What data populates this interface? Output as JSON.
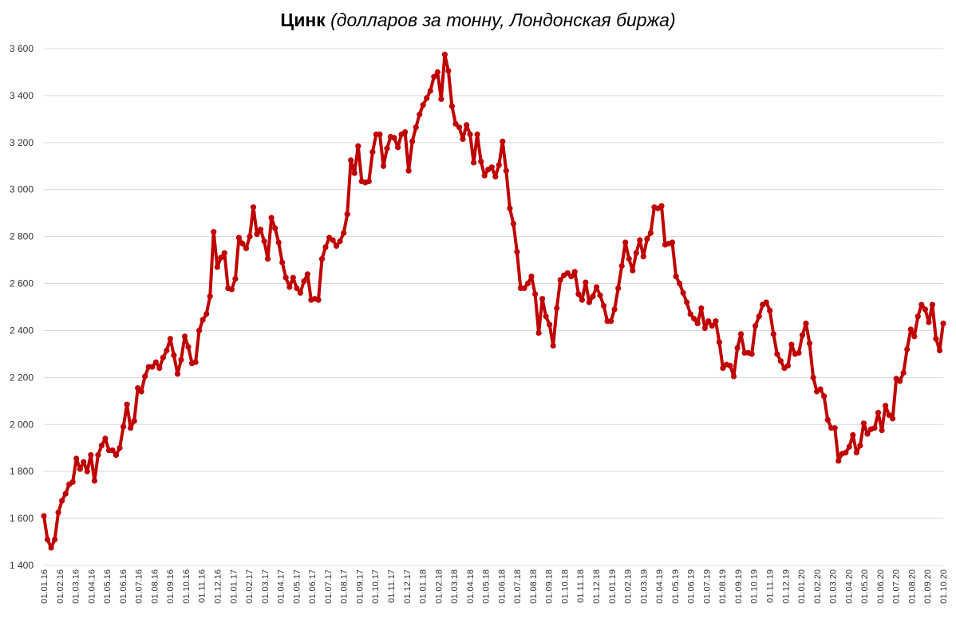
{
  "title": "Цинк",
  "subtitle": "(долларов за тонну, Лондонская биржа)",
  "colors": {
    "line": "#c00000",
    "grid": "#d9d9d9",
    "text": "#333333"
  },
  "chart_data": {
    "type": "line",
    "title": "Цинк (долларов за тонну, Лондонская биржа)",
    "xlabel": "",
    "ylabel": "",
    "ylim": [
      1400,
      3600
    ],
    "yticks": [
      1400,
      1600,
      1800,
      2000,
      2200,
      2400,
      2600,
      2800,
      3000,
      3200,
      3400,
      3600
    ],
    "ytick_labels": [
      "1 400",
      "1 600",
      "1 800",
      "2 000",
      "2 200",
      "2 400",
      "2 600",
      "2 800",
      "3 000",
      "3 200",
      "3 400",
      "3 600"
    ],
    "xtick_labels": [
      "01.01.16",
      "01.02.16",
      "01.03.16",
      "01.04.16",
      "01.05.16",
      "01.06.16",
      "01.07.16",
      "01.08.16",
      "01.09.16",
      "01.10.16",
      "01.11.16",
      "01.12.16",
      "01.01.17",
      "01.02.17",
      "01.03.17",
      "01.04.17",
      "01.05.17",
      "01.06.17",
      "01.07.17",
      "01.08.17",
      "01.09.17",
      "01.10.17",
      "01.11.17",
      "01.12.17",
      "01.01.18",
      "01.02.18",
      "01.03.18",
      "01.04.18",
      "01.05.18",
      "01.06.18",
      "01.07.18",
      "01.08.18",
      "01.09.18",
      "01.10.18",
      "01.11.18",
      "01.12.18",
      "01.01.19",
      "01.02.19",
      "01.03.19",
      "01.04.19",
      "01.05.19",
      "01.06.19",
      "01.07.19",
      "01.08.19",
      "01.09.19",
      "01.10.19",
      "01.11.19",
      "01.12.19",
      "01.01.20",
      "01.02.20",
      "01.03.20",
      "01.04.20",
      "01.05.20",
      "01.06.20",
      "01.07.20",
      "01.08.20",
      "01.09.20",
      "01.10.20"
    ],
    "grid": true,
    "legend": "none",
    "series": [
      {
        "values": [
          1610,
          1510,
          1475,
          1510,
          1625,
          1675,
          1705,
          1745,
          1755,
          1855,
          1810,
          1840,
          1800,
          1870,
          1760,
          1870,
          1910,
          1940,
          1890,
          1890,
          1870,
          1900,
          1990,
          2085,
          1985,
          2015,
          2155,
          2140,
          2205,
          2245,
          2245,
          2265,
          2240,
          2285,
          2315,
          2365,
          2295,
          2215,
          2275,
          2375,
          2330,
          2260,
          2265,
          2400,
          2445,
          2470,
          2545,
          2820,
          2670,
          2710,
          2730,
          2580,
          2575,
          2620,
          2795,
          2770,
          2750,
          2800,
          2925,
          2810,
          2830,
          2780,
          2705,
          2880,
          2835,
          2775,
          2690,
          2625,
          2585,
          2625,
          2580,
          2560,
          2610,
          2640,
          2530,
          2535,
          2530,
          2705,
          2755,
          2795,
          2785,
          2760,
          2780,
          2815,
          2895,
          3125,
          3070,
          3185,
          3035,
          3030,
          3035,
          3160,
          3235,
          3235,
          3100,
          3175,
          3225,
          3220,
          3180,
          3235,
          3245,
          3080,
          3205,
          3265,
          3320,
          3360,
          3390,
          3420,
          3480,
          3500,
          3385,
          3575,
          3505,
          3355,
          3280,
          3265,
          3215,
          3275,
          3235,
          3115,
          3235,
          3120,
          3060,
          3085,
          3095,
          3055,
          3105,
          3205,
          3080,
          2920,
          2855,
          2735,
          2580,
          2580,
          2600,
          2630,
          2555,
          2390,
          2535,
          2460,
          2425,
          2335,
          2495,
          2615,
          2635,
          2645,
          2630,
          2650,
          2555,
          2530,
          2605,
          2520,
          2545,
          2585,
          2550,
          2505,
          2440,
          2440,
          2490,
          2580,
          2675,
          2775,
          2705,
          2655,
          2730,
          2785,
          2715,
          2790,
          2815,
          2925,
          2920,
          2930,
          2765,
          2770,
          2775,
          2630,
          2600,
          2560,
          2520,
          2470,
          2450,
          2430,
          2495,
          2410,
          2440,
          2420,
          2440,
          2350,
          2240,
          2255,
          2250,
          2205,
          2325,
          2385,
          2305,
          2305,
          2300,
          2420,
          2460,
          2510,
          2520,
          2485,
          2385,
          2300,
          2270,
          2240,
          2250,
          2340,
          2300,
          2305,
          2380,
          2430,
          2345,
          2200,
          2140,
          2150,
          2120,
          2020,
          1985,
          1985,
          1845,
          1875,
          1880,
          1905,
          1955,
          1880,
          1910,
          2005,
          1960,
          1980,
          1985,
          2050,
          1975,
          2080,
          2040,
          2025,
          2195,
          2185,
          2220,
          2320,
          2405,
          2375,
          2460,
          2510,
          2490,
          2435,
          2510,
          2365,
          2315,
          2430
        ]
      }
    ]
  }
}
